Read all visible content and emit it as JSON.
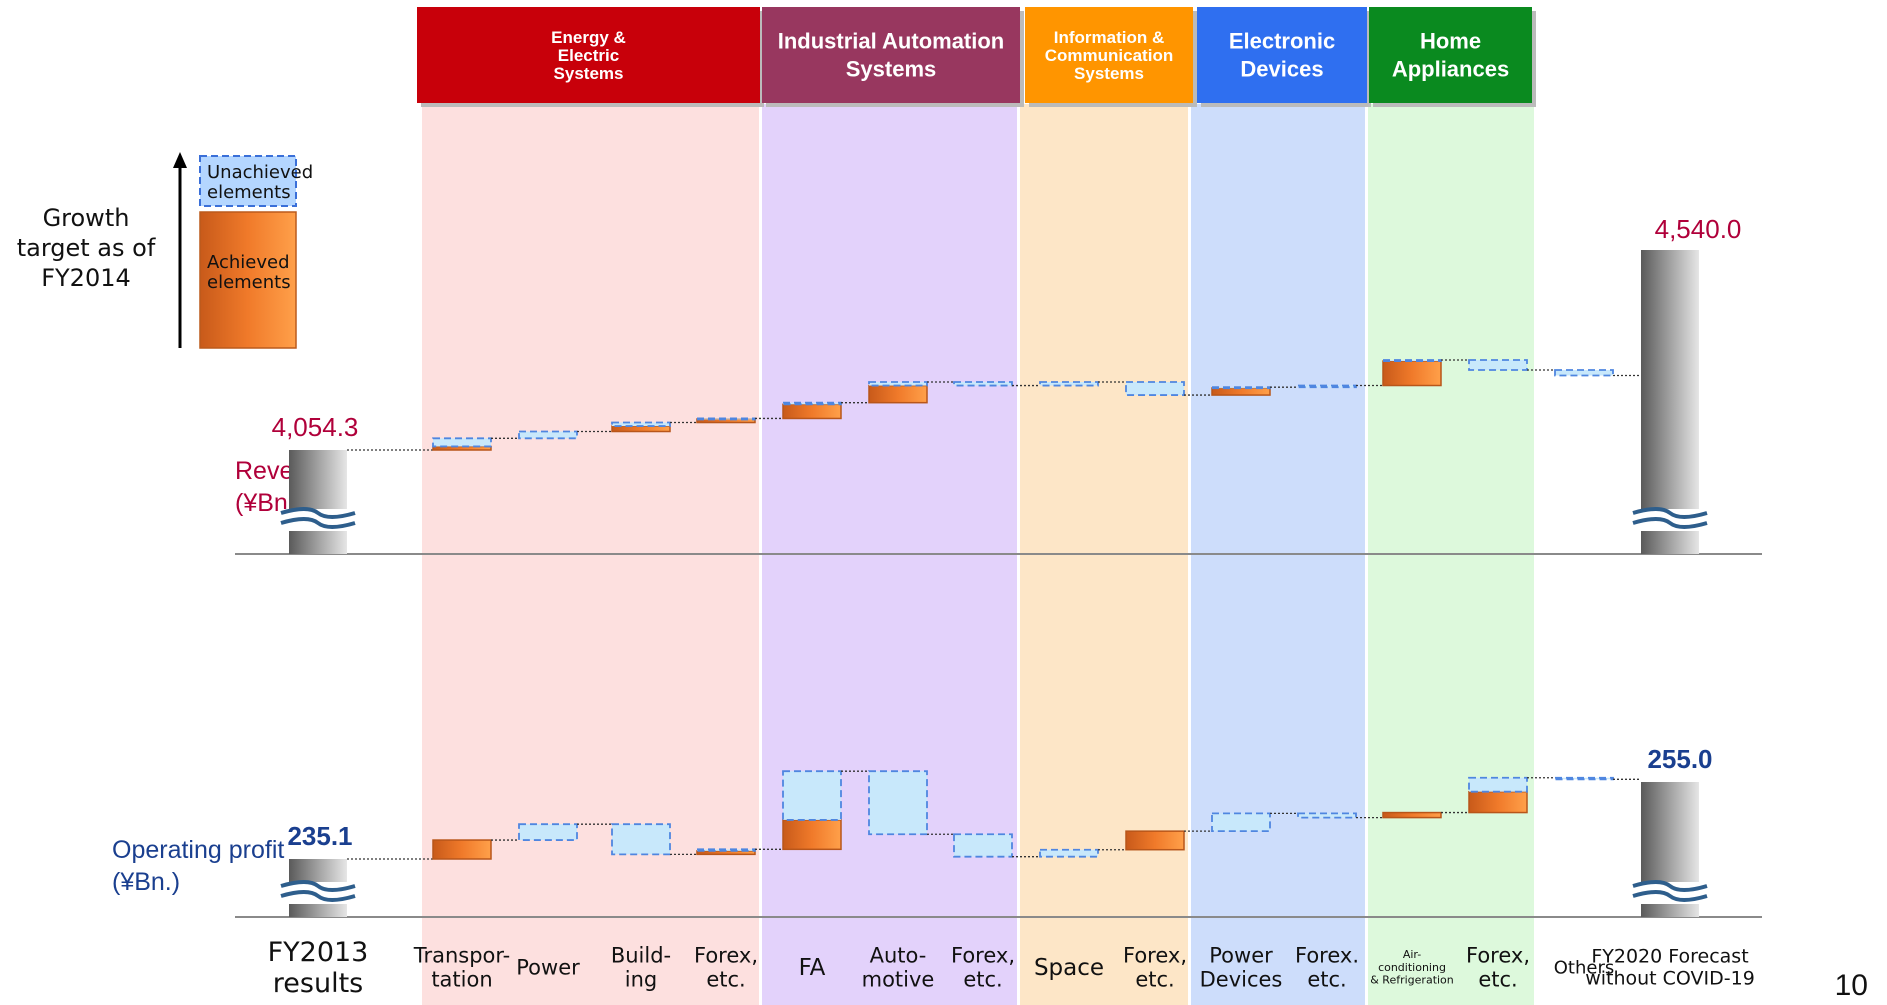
{
  "slide": {
    "page_number": "10"
  },
  "legend": {
    "unachieved": "Unachieved elements",
    "achieved": "Achieved elements",
    "caption": "Growth target as of FY2014"
  },
  "chart_data": [
    {
      "type": "waterfall",
      "title": "Revenue (¥Bn.)",
      "start": {
        "label": "FY2013 results",
        "value": 4054.3,
        "value_label": "4,054.3"
      },
      "end": {
        "label": "FY2020 Forecast without COVID-19",
        "value": 4540.0,
        "value_label": "4,540.0"
      },
      "color": "#b0003a",
      "steps": [
        {
          "category": "Transportation",
          "achieved": 8.6,
          "unachieved": 19.8
        },
        {
          "category": "Power",
          "achieved": 0,
          "unachieved": 16.5
        },
        {
          "category": "Building",
          "achieved": 13.2,
          "unachieved": 8.6
        },
        {
          "category": "Forex, etc.",
          "achieved": 8.6,
          "unachieved": 1.3
        },
        {
          "category": "FA",
          "achieved": 34.3,
          "unachieved": 4.0
        },
        {
          "category": "Automotive",
          "achieved": 41.6,
          "unachieved": 8.6
        },
        {
          "category": "Forex, etc.",
          "achieved": 0,
          "unachieved": -8.6
        },
        {
          "category": "Space",
          "achieved": 0,
          "unachieved": 8.6
        },
        {
          "category": "Forex, etc.",
          "achieved": 0,
          "unachieved": -31.7
        },
        {
          "category": "Power Devices",
          "achieved": 17.2,
          "unachieved": 2.0
        },
        {
          "category": "Forex. etc.",
          "achieved": 0,
          "unachieved": 4.0
        },
        {
          "category": "Air-conditioning & Refrigeration",
          "achieved": 59.4,
          "unachieved": 2.6
        },
        {
          "category": "Forex, etc.",
          "achieved": 0,
          "unachieved": -24.4
        },
        {
          "category": "Others",
          "achieved": 0,
          "unachieved": -13.2
        }
      ]
    },
    {
      "type": "waterfall",
      "title": "Operating profit (¥Bn.)",
      "start": {
        "label": "FY2013 results",
        "value": 235.1,
        "value_label": "235.1"
      },
      "end": {
        "label": "FY2020 Forecast without COVID-19",
        "value": 255.0,
        "value_label": "255.0"
      },
      "color": "#1a3f8f",
      "steps": [
        {
          "category": "Transportation",
          "achieved": 4.9,
          "unachieved": 0
        },
        {
          "category": "Power",
          "achieved": 0,
          "unachieved": 4.1
        },
        {
          "category": "Building",
          "achieved": 0,
          "unachieved": -7.8
        },
        {
          "category": "Forex, etc.",
          "achieved": 0.9,
          "unachieved": 0.4
        },
        {
          "category": "FA",
          "achieved": 7.6,
          "unachieved": 12.6
        },
        {
          "category": "Automotive",
          "achieved": 0,
          "unachieved": -16.3
        },
        {
          "category": "Forex, etc.",
          "achieved": 0,
          "unachieved": -5.8
        },
        {
          "category": "Space",
          "achieved": 0,
          "unachieved": 1.8
        },
        {
          "category": "Forex, etc.",
          "achieved": 4.8,
          "unachieved": 0
        },
        {
          "category": "Power Devices",
          "achieved": 0,
          "unachieved": 4.6
        },
        {
          "category": "Forex. etc.",
          "achieved": 0,
          "unachieved": -1.1
        },
        {
          "category": "Air-conditioning & Refrigeration",
          "achieved": 1.3,
          "unachieved": 0
        },
        {
          "category": "Forex, etc.",
          "achieved": 5.4,
          "unachieved": 3.6
        },
        {
          "category": "Others",
          "achieved": 0,
          "unachieved": -0.4
        }
      ]
    }
  ],
  "segments": [
    {
      "name": "Energy & Electric Systems",
      "header_color": "#c8000a",
      "band_color": "#fde0df",
      "columns": 4
    },
    {
      "name": "Industrial Automation Systems",
      "header_color": "#98375f",
      "band_color": "#e3d2fb",
      "columns": 3
    },
    {
      "name": "Information & Communication Systems",
      "header_color": "#ff9500",
      "band_color": "#fde6c7",
      "columns": 2
    },
    {
      "name": "Electronic Devices",
      "header_color": "#2f6ff0",
      "band_color": "#cdddfb",
      "columns": 2
    },
    {
      "name": "Home Appliances",
      "header_color": "#0a8a1f",
      "band_color": "#ddf9dc",
      "columns": 2
    }
  ],
  "x_labels": [
    {
      "lines": [
        "FY2013",
        "results"
      ],
      "size": 27
    },
    {
      "lines": [
        "Transpor-",
        "tation"
      ],
      "size": 21
    },
    {
      "lines": [
        "Power"
      ],
      "size": 21
    },
    {
      "lines": [
        "Build-",
        "ing"
      ],
      "size": 21
    },
    {
      "lines": [
        "Forex,",
        "etc."
      ],
      "size": 21
    },
    {
      "lines": [
        "FA"
      ],
      "size": 23
    },
    {
      "lines": [
        "Auto-",
        "motive"
      ],
      "size": 21
    },
    {
      "lines": [
        "Forex,",
        "etc."
      ],
      "size": 21
    },
    {
      "lines": [
        "Space"
      ],
      "size": 23
    },
    {
      "lines": [
        "Forex,",
        "etc."
      ],
      "size": 21
    },
    {
      "lines": [
        "Power",
        "Devices"
      ],
      "size": 21
    },
    {
      "lines": [
        "Forex.",
        "etc."
      ],
      "size": 21
    },
    {
      "lines": [
        "Air-",
        "conditioning",
        "& Refrigeration"
      ],
      "size": 11
    },
    {
      "lines": [
        "Forex,",
        "etc."
      ],
      "size": 21
    },
    {
      "lines": [
        "Others"
      ],
      "size": 18
    },
    {
      "lines": [
        "FY2020 Forecast",
        "without COVID-19"
      ],
      "size": 19
    }
  ]
}
